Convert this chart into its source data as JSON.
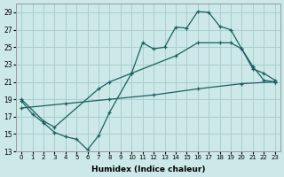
{
  "xlabel": "Humidex (Indice chaleur)",
  "x_ticks": [
    0,
    1,
    2,
    3,
    4,
    5,
    6,
    7,
    8,
    9,
    10,
    11,
    12,
    13,
    14,
    15,
    16,
    17,
    18,
    19,
    20,
    21,
    22,
    23
  ],
  "ylim": [
    13,
    30
  ],
  "xlim": [
    -0.5,
    23.5
  ],
  "yticks": [
    13,
    15,
    17,
    19,
    21,
    23,
    25,
    27,
    29
  ],
  "background_color": "#cce8e8",
  "grid_color": "#aacece",
  "line_color": "#1a6060",
  "jagged_x": [
    0,
    1,
    2,
    3,
    4,
    5,
    6,
    7,
    8,
    10,
    11,
    12,
    13,
    14,
    15,
    16,
    17,
    18,
    19,
    20,
    21,
    22,
    23
  ],
  "jagged_y": [
    18.8,
    17.3,
    16.3,
    15.2,
    14.7,
    14.4,
    13.2,
    14.8,
    17.5,
    22.0,
    25.5,
    24.8,
    25.0,
    27.3,
    27.2,
    29.1,
    29.0,
    27.4,
    27.0,
    24.8,
    22.8,
    21.2,
    21.0
  ],
  "upper_diag_x": [
    0,
    2,
    3,
    7,
    8,
    10,
    14,
    16,
    18,
    19,
    20,
    21,
    22,
    23
  ],
  "upper_diag_y": [
    19.0,
    16.5,
    15.8,
    20.2,
    21.0,
    22.0,
    24.0,
    25.5,
    25.5,
    25.5,
    24.8,
    22.5,
    22.0,
    21.2
  ],
  "lower_diag_x": [
    0,
    4,
    8,
    12,
    16,
    20,
    23
  ],
  "lower_diag_y": [
    18.0,
    18.5,
    19.0,
    19.5,
    20.2,
    20.8,
    21.0
  ]
}
